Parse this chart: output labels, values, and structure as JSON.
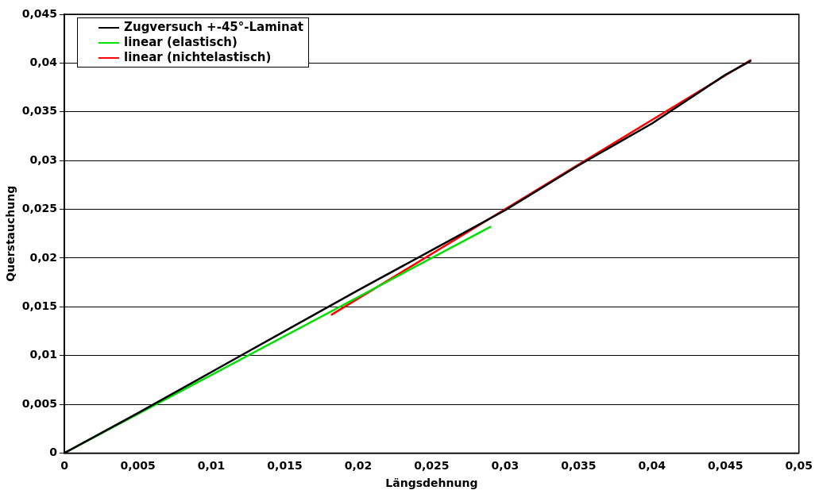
{
  "chart_data": {
    "type": "line",
    "xlabel": "Längsdehnung",
    "ylabel": "Querstauchung",
    "xlim": [
      0,
      0.05
    ],
    "ylim": [
      0,
      0.045
    ],
    "xticks": [
      0,
      {
        "value": 0.005,
        "label": "0,005"
      },
      {
        "value": 0.01,
        "label": "0,01"
      },
      {
        "value": 0.015,
        "label": "0,015"
      },
      {
        "value": 0.02,
        "label": "0,02"
      },
      {
        "value": 0.025,
        "label": "0,025"
      },
      {
        "value": 0.03,
        "label": "0,03"
      },
      {
        "value": 0.035,
        "label": "0,035"
      },
      {
        "value": 0.04,
        "label": "0,04"
      },
      {
        "value": 0.045,
        "label": "0,045"
      },
      {
        "value": 0.05,
        "label": "0,05"
      }
    ],
    "yticks": [
      0,
      {
        "value": 0.005,
        "label": "0,005"
      },
      {
        "value": 0.01,
        "label": "0,01"
      },
      {
        "value": 0.015,
        "label": "0,015"
      },
      {
        "value": 0.02,
        "label": "0,02"
      },
      {
        "value": 0.025,
        "label": "0,025"
      },
      {
        "value": 0.03,
        "label": "0,03"
      },
      {
        "value": 0.035,
        "label": "0,035"
      },
      {
        "value": 0.04,
        "label": "0,04"
      },
      {
        "value": 0.045,
        "label": "0,045"
      }
    ],
    "grid": "y",
    "legend": "top left",
    "marker": "none",
    "line_style": "solid",
    "series": [
      {
        "name": "Zugversuch +-45°-Laminat",
        "color": "#000000",
        "x": [
          0,
          0.005,
          0.01,
          0.015,
          0.02,
          0.025,
          0.03,
          0.035,
          0.04,
          0.045,
          0.0467
        ],
        "values": [
          0,
          0.0041,
          0.0083,
          0.0125,
          0.0167,
          0.0208,
          0.0249,
          0.0295,
          0.0338,
          0.0388,
          0.0402
        ]
      },
      {
        "name": "linear (elastisch)",
        "color": "#00e000",
        "x": [
          0,
          0.029
        ],
        "values": [
          0,
          0.0232
        ]
      },
      {
        "name": "linear (nichtelastisch)",
        "color": "#ff0000",
        "x": [
          0.0182,
          0.0467
        ],
        "values": [
          0.0142,
          0.0403
        ]
      }
    ]
  }
}
